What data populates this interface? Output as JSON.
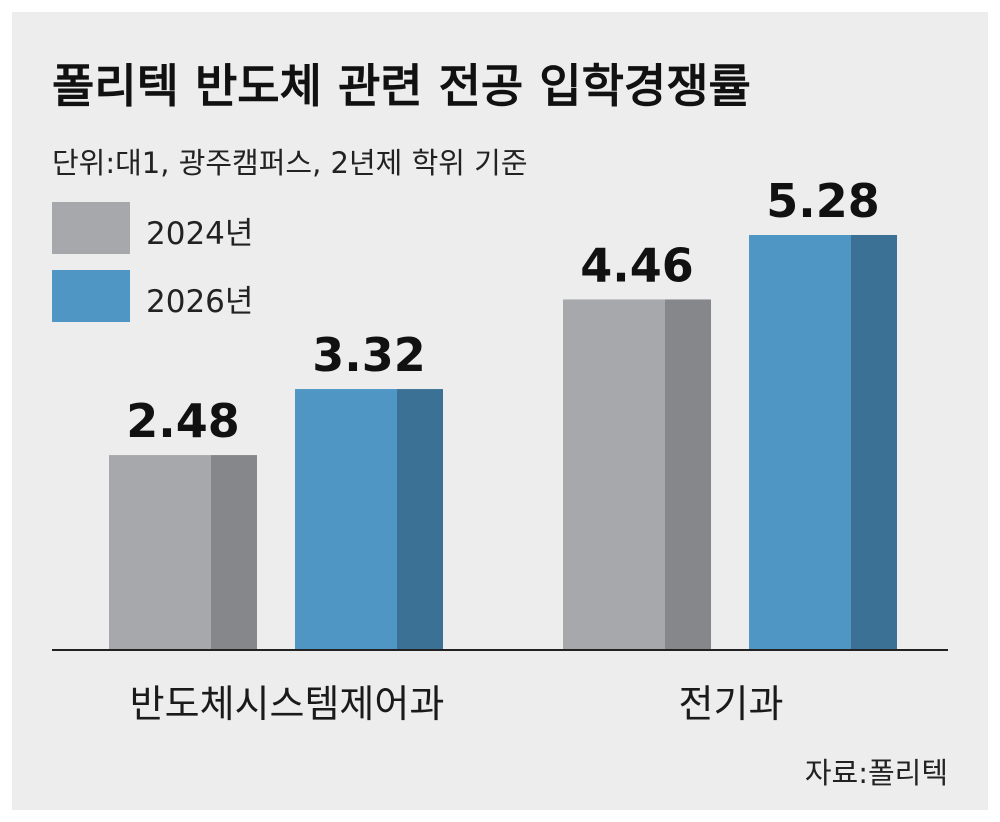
{
  "title": "폴리텍 반도체 관련 전공 입학경쟁률",
  "subtitle": "단위:대1, 광주캠퍼스, 2년제 학위 기준",
  "source": "자료:폴리텍",
  "colors": {
    "background": "#ededed",
    "series_2024_front": "#a7a8ab",
    "series_2024_side": "#86878a",
    "series_2026_front": "#4f96c5",
    "series_2026_side": "#3b7194",
    "baseline": "#222222"
  },
  "chart_data": {
    "type": "bar",
    "categories": [
      "반도체시스템제어과",
      "전기과"
    ],
    "series": [
      {
        "name": "2024년",
        "values": [
          2.48,
          4.46
        ]
      },
      {
        "name": "2026년",
        "values": [
          3.32,
          5.28
        ]
      }
    ],
    "data_labels": [
      [
        "2.48",
        "4.46"
      ],
      [
        "3.32",
        "5.28"
      ]
    ],
    "ylim": [
      0,
      6.5
    ],
    "grid": false,
    "legend": "top-left"
  }
}
